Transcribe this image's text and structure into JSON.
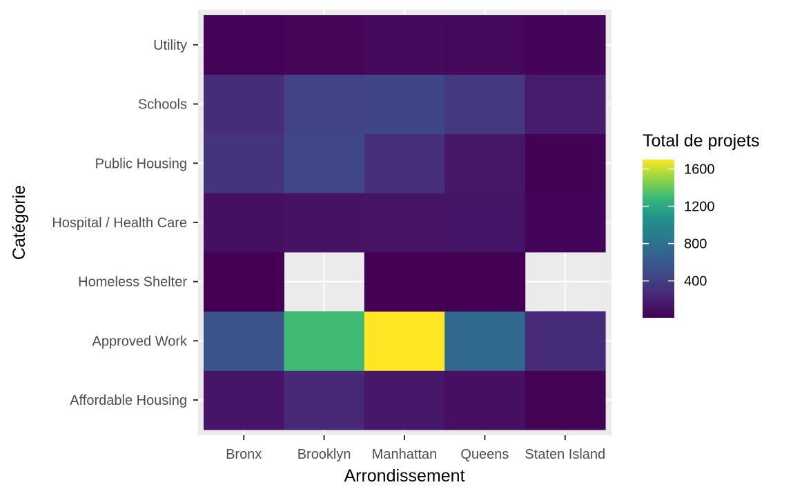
{
  "chart_data": {
    "type": "heatmap",
    "title": "",
    "xlabel": "Arrondissement",
    "ylabel": "Catégorie",
    "x_categories": [
      "Bronx",
      "Brooklyn",
      "Manhattan",
      "Queens",
      "Staten Island"
    ],
    "y_categories": [
      "Affordable Housing",
      "Approved Work",
      "Homeless Shelter",
      "Hospital / Health Care",
      "Public Housing",
      "Schools",
      "Utility"
    ],
    "color_scale": "viridis",
    "color_range": [
      5,
      1700
    ],
    "missing_color": "#ebebeb",
    "cells": [
      {
        "x": "Bronx",
        "y": "Affordable Housing",
        "value": 130
      },
      {
        "x": "Brooklyn",
        "y": "Affordable Housing",
        "value": 260
      },
      {
        "x": "Manhattan",
        "y": "Affordable Housing",
        "value": 150
      },
      {
        "x": "Queens",
        "y": "Affordable Housing",
        "value": 95
      },
      {
        "x": "Staten Island",
        "y": "Affordable Housing",
        "value": 15
      },
      {
        "x": "Bronx",
        "y": "Approved Work",
        "value": 560
      },
      {
        "x": "Brooklyn",
        "y": "Approved Work",
        "value": 1300
      },
      {
        "x": "Manhattan",
        "y": "Approved Work",
        "value": 1700
      },
      {
        "x": "Queens",
        "y": "Approved Work",
        "value": 730
      },
      {
        "x": "Staten Island",
        "y": "Approved Work",
        "value": 270
      },
      {
        "x": "Bronx",
        "y": "Homeless Shelter",
        "value": 8
      },
      {
        "x": "Brooklyn",
        "y": "Homeless Shelter",
        "value": null
      },
      {
        "x": "Manhattan",
        "y": "Homeless Shelter",
        "value": 6
      },
      {
        "x": "Queens",
        "y": "Homeless Shelter",
        "value": 6
      },
      {
        "x": "Staten Island",
        "y": "Homeless Shelter",
        "value": null
      },
      {
        "x": "Bronx",
        "y": "Hospital / Health Care",
        "value": 100
      },
      {
        "x": "Brooklyn",
        "y": "Hospital / Health Care",
        "value": 110
      },
      {
        "x": "Manhattan",
        "y": "Hospital / Health Care",
        "value": 120
      },
      {
        "x": "Queens",
        "y": "Hospital / Health Care",
        "value": 125
      },
      {
        "x": "Staten Island",
        "y": "Hospital / Health Care",
        "value": 30
      },
      {
        "x": "Bronx",
        "y": "Public Housing",
        "value": 330
      },
      {
        "x": "Brooklyn",
        "y": "Public Housing",
        "value": 450
      },
      {
        "x": "Manhattan",
        "y": "Public Housing",
        "value": 290
      },
      {
        "x": "Queens",
        "y": "Public Housing",
        "value": 135
      },
      {
        "x": "Staten Island",
        "y": "Public Housing",
        "value": 12
      },
      {
        "x": "Bronx",
        "y": "Schools",
        "value": 280
      },
      {
        "x": "Brooklyn",
        "y": "Schools",
        "value": 420
      },
      {
        "x": "Manhattan",
        "y": "Schools",
        "value": 440
      },
      {
        "x": "Queens",
        "y": "Schools",
        "value": 350
      },
      {
        "x": "Staten Island",
        "y": "Schools",
        "value": 170
      },
      {
        "x": "Bronx",
        "y": "Utility",
        "value": 20
      },
      {
        "x": "Brooklyn",
        "y": "Utility",
        "value": 35
      },
      {
        "x": "Manhattan",
        "y": "Utility",
        "value": 60
      },
      {
        "x": "Queens",
        "y": "Utility",
        "value": 50
      },
      {
        "x": "Staten Island",
        "y": "Utility",
        "value": 25
      }
    ],
    "legend": {
      "title": "Total de projets",
      "ticks": [
        400,
        800,
        1200,
        1600
      ],
      "tick_labels": [
        "400",
        "800",
        "1200",
        "1600"
      ],
      "position": "right"
    },
    "grid": true
  }
}
